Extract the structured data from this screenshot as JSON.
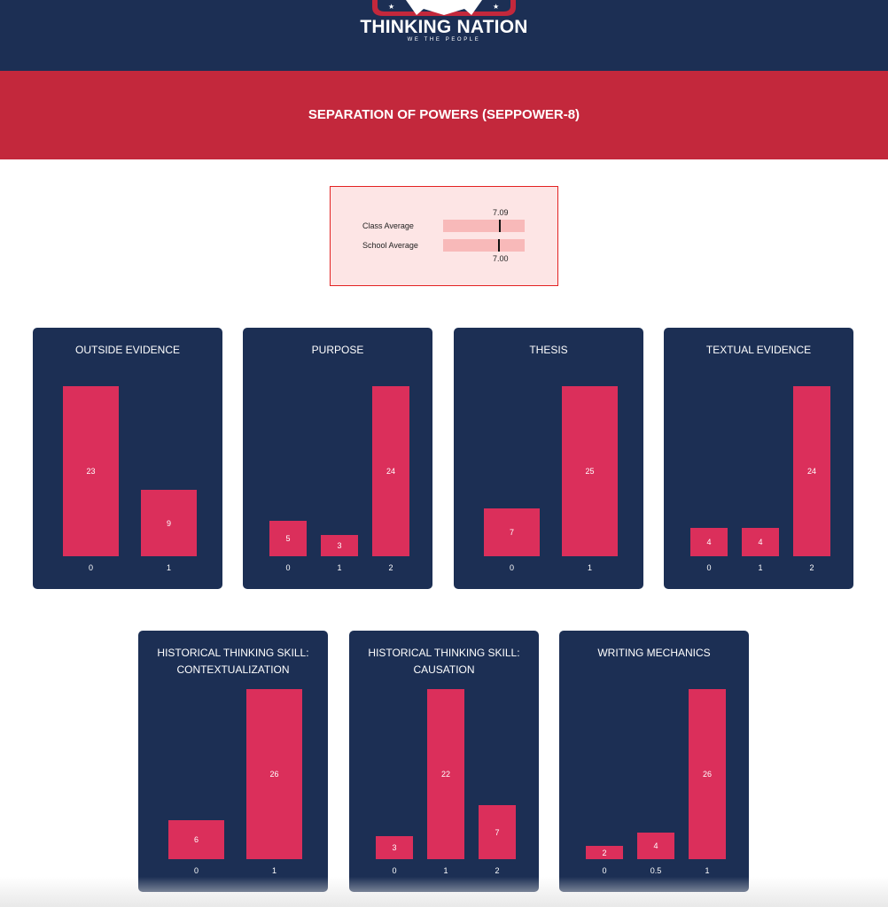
{
  "header": {
    "logo_title": "THINKING NATION",
    "logo_subtitle": "WE THE PEOPLE"
  },
  "banner": {
    "title": "SEPARATION OF POWERS (SEPPOWER-8)"
  },
  "averages": {
    "class_label": "Class Average",
    "class_value": "7.09",
    "school_label": "School Average",
    "school_value": "7.00"
  },
  "colors": {
    "navy": "#1c2f54",
    "red": "#c3283c",
    "bar": "#db2f5b"
  },
  "chart_data": [
    {
      "type": "bar",
      "title": "OUTSIDE EVIDENCE",
      "categories": [
        "0",
        "1"
      ],
      "values": [
        23,
        9
      ]
    },
    {
      "type": "bar",
      "title": "PURPOSE",
      "categories": [
        "0",
        "1",
        "2"
      ],
      "values": [
        5,
        3,
        24
      ]
    },
    {
      "type": "bar",
      "title": "THESIS",
      "categories": [
        "0",
        "1"
      ],
      "values": [
        7,
        25
      ]
    },
    {
      "type": "bar",
      "title": "TEXTUAL EVIDENCE",
      "categories": [
        "0",
        "1",
        "2"
      ],
      "values": [
        4,
        4,
        24
      ]
    },
    {
      "type": "bar",
      "title": "HISTORICAL THINKING SKILL: CONTEXTUALIZATION",
      "categories": [
        "0",
        "1"
      ],
      "values": [
        6,
        26
      ]
    },
    {
      "type": "bar",
      "title": "HISTORICAL THINKING SKILL: CAUSATION",
      "categories": [
        "0",
        "1",
        "2"
      ],
      "values": [
        3,
        22,
        7
      ]
    },
    {
      "type": "bar",
      "title": "WRITING MECHANICS",
      "categories": [
        "0",
        "0.5",
        "1"
      ],
      "values": [
        2,
        4,
        26
      ]
    }
  ]
}
